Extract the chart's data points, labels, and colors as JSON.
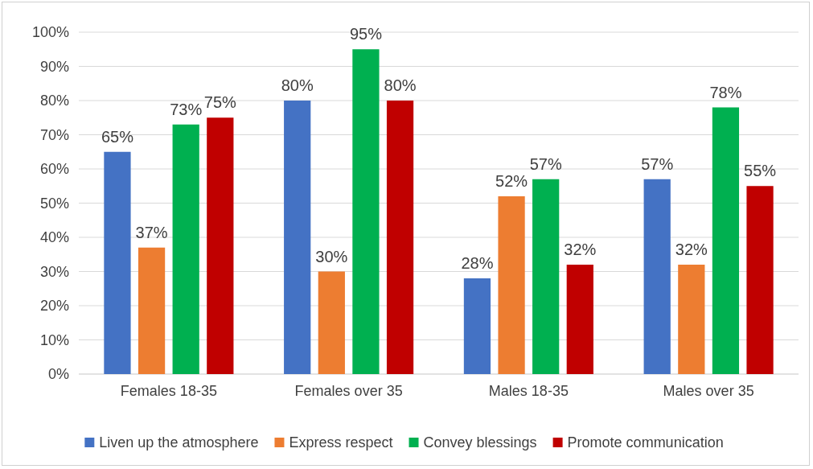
{
  "chart_data": {
    "type": "bar",
    "categories": [
      "Females 18-35",
      "Females over 35",
      "Males 18-35",
      "Males over 35"
    ],
    "series": [
      {
        "name": "Liven up the atmosphere",
        "color": "#4472c4",
        "values": [
          65,
          80,
          28,
          57
        ],
        "value_labels": [
          "65%",
          "80%",
          "28%",
          "57%"
        ]
      },
      {
        "name": "Express respect",
        "color": "#ed7d31",
        "values": [
          37,
          30,
          52,
          32
        ],
        "value_labels": [
          "37%",
          "30%",
          "52%",
          "32%"
        ]
      },
      {
        "name": "Convey blessings",
        "color": "#00b050",
        "values": [
          73,
          95,
          57,
          78
        ],
        "value_labels": [
          "73%",
          "95%",
          "57%",
          "78%"
        ]
      },
      {
        "name": "Promote communication",
        "color": "#c00000",
        "values": [
          75,
          80,
          32,
          55
        ],
        "value_labels": [
          "75%",
          "80%",
          "32%",
          "55%"
        ]
      }
    ],
    "ylim": [
      0,
      100
    ],
    "yticks": [
      {
        "value": 0,
        "label": "0%"
      },
      {
        "value": 10,
        "label": "10%"
      },
      {
        "value": 20,
        "label": "20%"
      },
      {
        "value": 30,
        "label": "30%"
      },
      {
        "value": 40,
        "label": "40%"
      },
      {
        "value": 50,
        "label": "50%"
      },
      {
        "value": 60,
        "label": "60%"
      },
      {
        "value": 70,
        "label": "70%"
      },
      {
        "value": 80,
        "label": "80%"
      },
      {
        "value": 90,
        "label": "90%"
      },
      {
        "value": 100,
        "label": "100%"
      }
    ],
    "grid": "y",
    "legend": "bottom"
  }
}
